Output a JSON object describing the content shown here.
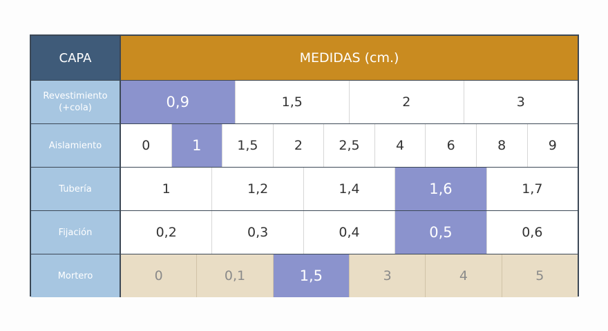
{
  "header": {
    "layer": "CAPA",
    "measures": "MEDIDAS (cm.)"
  },
  "rows": [
    {
      "label": [
        "Revestimiento",
        "(+cola)"
      ],
      "values": [
        "0,9",
        "1,5",
        "2",
        "3"
      ],
      "selected": 0,
      "style": "white"
    },
    {
      "label": [
        "Aislamiento"
      ],
      "values": [
        "0",
        "1",
        "1,5",
        "2",
        "2,5",
        "4",
        "6",
        "8",
        "9"
      ],
      "selected": 1,
      "style": "white"
    },
    {
      "label": [
        "Tubería"
      ],
      "values": [
        "1",
        "1,2",
        "1,4",
        "1,6",
        "1,7"
      ],
      "selected": 3,
      "style": "white"
    },
    {
      "label": [
        "Fijación"
      ],
      "values": [
        "0,2",
        "0,3",
        "0,4",
        "0,5",
        "0,6"
      ],
      "selected": 3,
      "style": "white"
    },
    {
      "label": [
        "Mortero"
      ],
      "values": [
        "0",
        "0,1",
        "1,5",
        "3",
        "4",
        "5"
      ],
      "selected": 2,
      "style": "beige"
    }
  ]
}
